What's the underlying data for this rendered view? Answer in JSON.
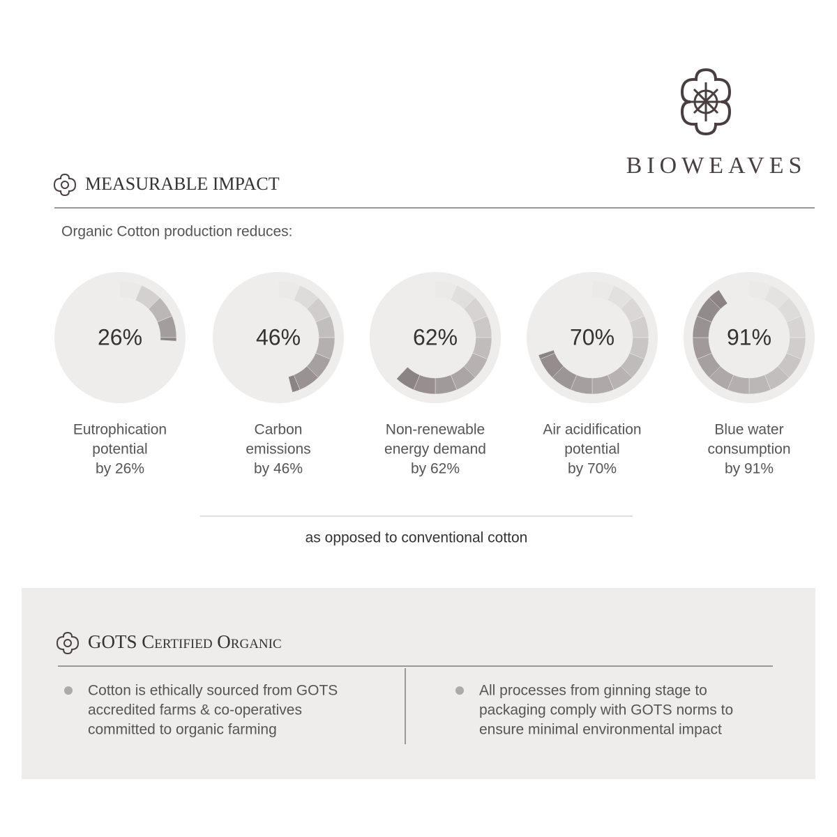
{
  "brand": {
    "name": "BIOWEAVES"
  },
  "impact": {
    "title": "MEASURABLE IMPACT",
    "intro": "Organic Cotton production reduces:",
    "gauges": [
      {
        "value": 26,
        "value_label": "26%",
        "label": [
          "Eutrophication",
          "potential",
          "by 26%"
        ]
      },
      {
        "value": 46,
        "value_label": "46%",
        "label": [
          "Carbon",
          "emissions",
          "by 46%"
        ]
      },
      {
        "value": 62,
        "value_label": "62%",
        "label": [
          "Non-renewable",
          "energy demand",
          "by 62%"
        ]
      },
      {
        "value": 70,
        "value_label": "70%",
        "label": [
          "Air acidification",
          "potential",
          "by 70%"
        ]
      },
      {
        "value": 91,
        "value_label": "91%",
        "label": [
          "Blue water",
          "consumption",
          "by 91%"
        ]
      }
    ],
    "footnote": "as opposed to conventional cotton"
  },
  "certification": {
    "title": "GOTS Certified Organic",
    "points": [
      [
        "Cotton is ethically sourced from GOTS",
        "accredited farms & co-operatives",
        "committed to organic farming"
      ],
      [
        "All processes from ginning stage to",
        "packaging comply with GOTS norms to",
        "ensure minimal environmental impact"
      ]
    ]
  }
}
